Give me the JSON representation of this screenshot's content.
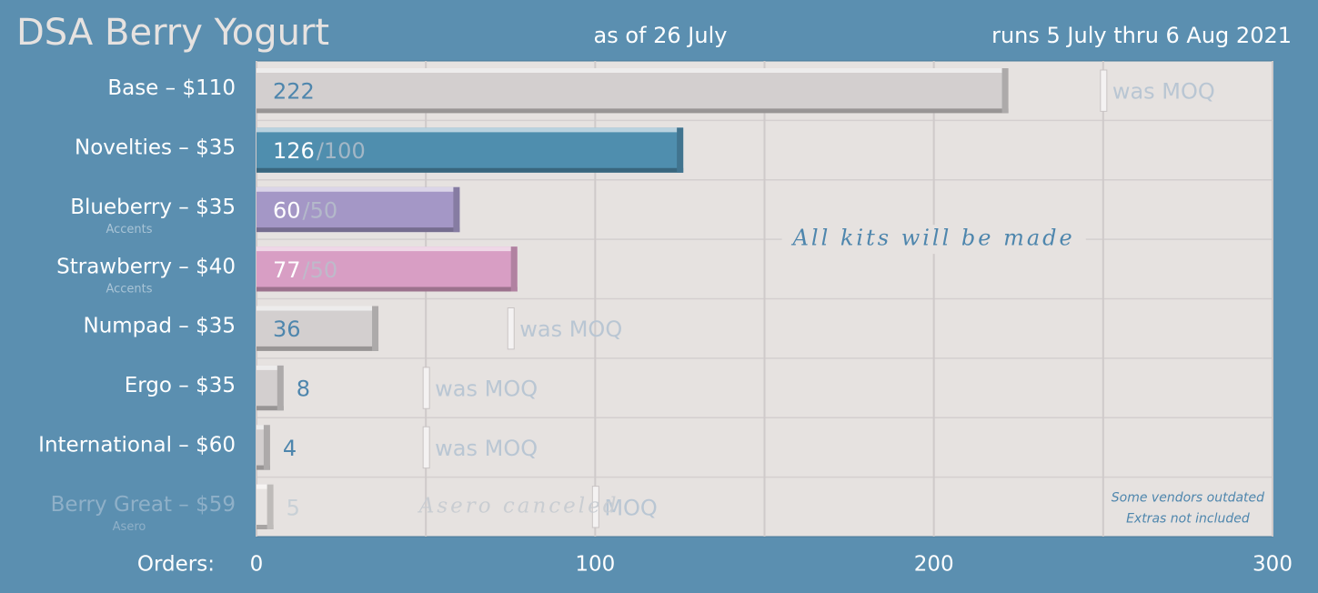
{
  "chart_data": {
    "type": "bar",
    "orientation": "horizontal",
    "title": "DSA Berry Yogurt",
    "subtitle": "as of 26 July",
    "period": "runs 5 July thru 6 Aug 2021",
    "x_label": "Orders:",
    "categories": [
      "Base – $110",
      "Novelties – $35",
      "Blueberry – $35",
      "Strawberry – $40",
      "Numpad – $35",
      "Ergo – $35",
      "International – $60",
      "Berry Great – $59"
    ],
    "sublabels": [
      null,
      null,
      "Accents",
      "Accents",
      null,
      null,
      null,
      "Asero"
    ],
    "values": [
      222,
      126,
      60,
      77,
      36,
      8,
      4,
      5
    ],
    "colors": [
      "#d3cfcf",
      "#4f8eae",
      "#a497c6",
      "#d89ec4",
      "#d3cfcf",
      "#d3cfcf",
      "#d3cfcf",
      "#e8e4e2"
    ],
    "label_colors": [
      "#ffffff",
      "#ffffff",
      "#ffffff",
      "#ffffff",
      "#ffffff",
      "#ffffff",
      "#ffffff",
      "#8fb0c8"
    ],
    "value_label_colors": [
      "#4e86ad",
      "#ffffff",
      "#ffffff",
      "#ffffff",
      "#4e86ad",
      "#4e86ad",
      "#4e86ad",
      "#c8d0d6"
    ],
    "moq": [
      250,
      100,
      50,
      50,
      75,
      50,
      50,
      100
    ],
    "moq_labels": [
      "was MOQ",
      "/100",
      "/50",
      "/50",
      "was MOQ",
      "was MOQ",
      "was MOQ",
      "MOQ"
    ],
    "moq_style": [
      "marker",
      "suffix",
      "suffix",
      "suffix",
      "marker",
      "marker",
      "marker",
      "marker"
    ],
    "xlim": [
      0,
      300
    ],
    "xticks": [
      0,
      100,
      200,
      300
    ],
    "grid_x": [
      50,
      150,
      250
    ],
    "grid": true,
    "annotations": [
      {
        "text": "All kits will be made",
        "x": 200,
        "row": 2.5
      },
      {
        "text": "Asero canceled",
        "x": 48,
        "row": 7
      },
      {
        "text": "Some vendors outdated",
        "x": 275,
        "row": 6.85
      },
      {
        "text": "Extras not included",
        "x": 275,
        "row": 7.2
      }
    ]
  }
}
